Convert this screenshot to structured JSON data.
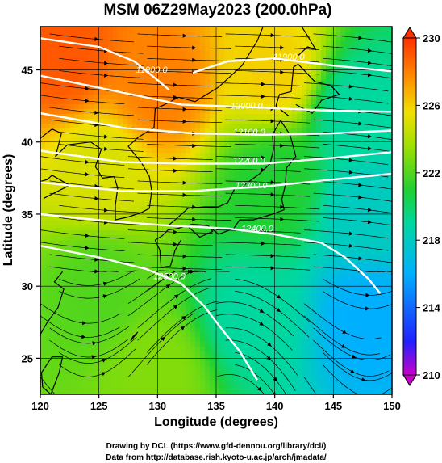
{
  "title": "MSM 06Z29May2023 (200.0hPa)",
  "x_axis": {
    "label": "Longitude (degrees)",
    "ticks": [
      "120",
      "125",
      "130",
      "135",
      "140",
      "145",
      "150"
    ]
  },
  "y_axis": {
    "label": "Latitude  (degrees)",
    "ticks": [
      "25",
      "30",
      "35",
      "40",
      "45"
    ]
  },
  "colorbar": {
    "ticks": [
      "210",
      "214",
      "218",
      "222",
      "226",
      "230"
    ],
    "min": 210,
    "max": 230
  },
  "credits": {
    "line1": "Drawing by DCL (https://www.gfd-dennou.org/library/dcl/)",
    "line2": "Data from http://database.rish.kyoto-u.ac.jp/arch/jmadata/"
  },
  "contour_labels": [
    "11900.0",
    "11900.0",
    "12000.0",
    "12100.0",
    "12200.0",
    "12300.0",
    "12400.0",
    "12500.0"
  ],
  "chart_data": {
    "type": "heatmap",
    "title": "MSM 06Z29May2023 (200.0hPa)",
    "xlabel": "Longitude (degrees)",
    "ylabel": "Latitude  (degrees)",
    "xlim": [
      120,
      150
    ],
    "ylim": [
      22.5,
      48
    ],
    "colorbar_range": [
      210,
      230
    ],
    "shaded_field_estimates": [
      {
        "lon": 122,
        "lat": 46,
        "value": 229
      },
      {
        "lon": 130,
        "lat": 44,
        "value": 228
      },
      {
        "lon": 140,
        "lat": 45,
        "value": 226
      },
      {
        "lon": 147,
        "lat": 42,
        "value": 219
      },
      {
        "lon": 125,
        "lat": 38,
        "value": 225
      },
      {
        "lon": 140,
        "lat": 37,
        "value": 221
      },
      {
        "lon": 148,
        "lat": 35,
        "value": 218
      },
      {
        "lon": 125,
        "lat": 30,
        "value": 222
      },
      {
        "lon": 138,
        "lat": 28,
        "value": 219
      },
      {
        "lon": 148,
        "lat": 28,
        "value": 216
      },
      {
        "lon": 130,
        "lat": 24,
        "value": 223
      }
    ],
    "contours": [
      {
        "label": "11900.0",
        "lon": 129.5,
        "lat": 44.8
      },
      {
        "label": "11900.0",
        "lon": 141.2,
        "lat": 45.7
      },
      {
        "label": "12000.0",
        "lon": 137.6,
        "lat": 42.3
      },
      {
        "label": "12100.0",
        "lon": 137.8,
        "lat": 40.5
      },
      {
        "label": "12200.0",
        "lon": 137.8,
        "lat": 38.5
      },
      {
        "lon": 138.0,
        "lat": 36.8,
        "label": "12300.0"
      },
      {
        "lon": 138.5,
        "lat": 33.8,
        "label": "12400.0"
      },
      {
        "lon": 131.0,
        "lat": 30.5,
        "label": "12500.0"
      }
    ]
  }
}
